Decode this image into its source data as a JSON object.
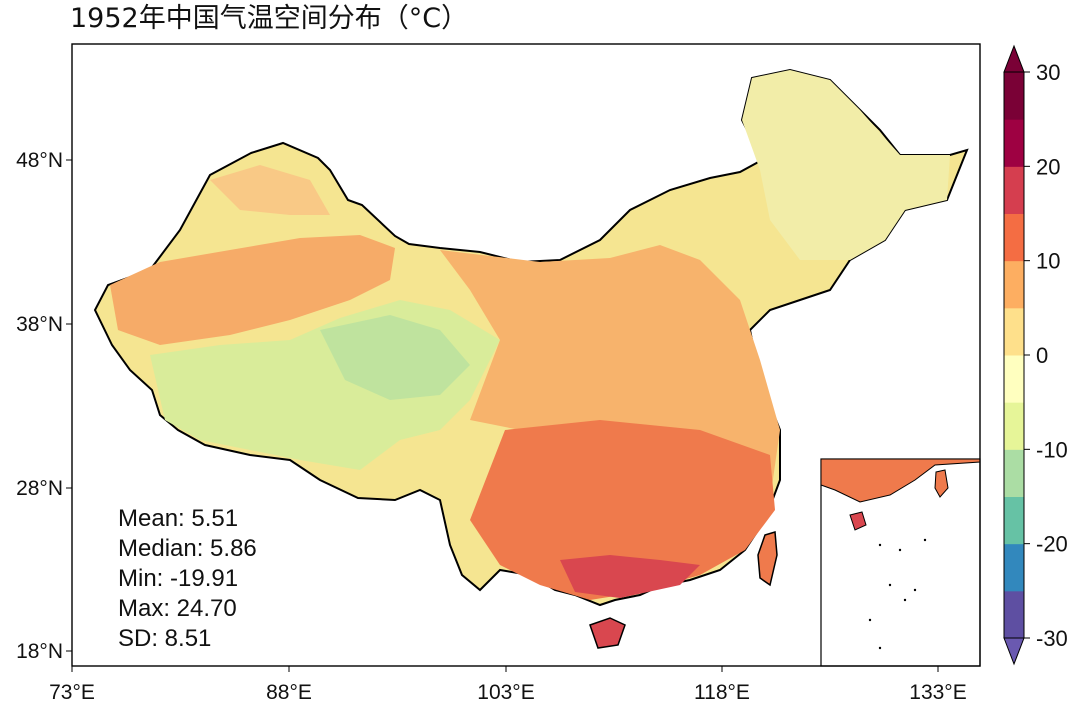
{
  "title": "1952年中国气温空间分布（°C）",
  "map": {
    "lon_range": [
      73,
      136
    ],
    "lat_range": [
      17,
      54
    ],
    "x_ticks": [
      "73°E",
      "88°E",
      "103°E",
      "118°E",
      "133°E"
    ],
    "y_ticks": [
      "48°N",
      "38°N",
      "28°N",
      "18°N"
    ],
    "inset": "South China Sea islands"
  },
  "stats": {
    "mean": "Mean: 5.51",
    "median": "Median: 5.86",
    "min": "Min: -19.91",
    "max": "Max: 24.70",
    "sd": "SD: 8.51"
  },
  "colorbar": {
    "range": [
      -30,
      30
    ],
    "step": 5,
    "tick_labels": [
      "30",
      "20",
      "10",
      "0",
      "-10",
      "-20",
      "-30"
    ],
    "extend": "both",
    "colors_bottom_to_top": [
      "#5e4fa2",
      "#3288bd",
      "#66c2a5",
      "#abdda4",
      "#e6f598",
      "#ffffbf",
      "#fee08b",
      "#fdae61",
      "#f46d43",
      "#d53e4f",
      "#9e0142",
      "#7a0136"
    ]
  }
}
